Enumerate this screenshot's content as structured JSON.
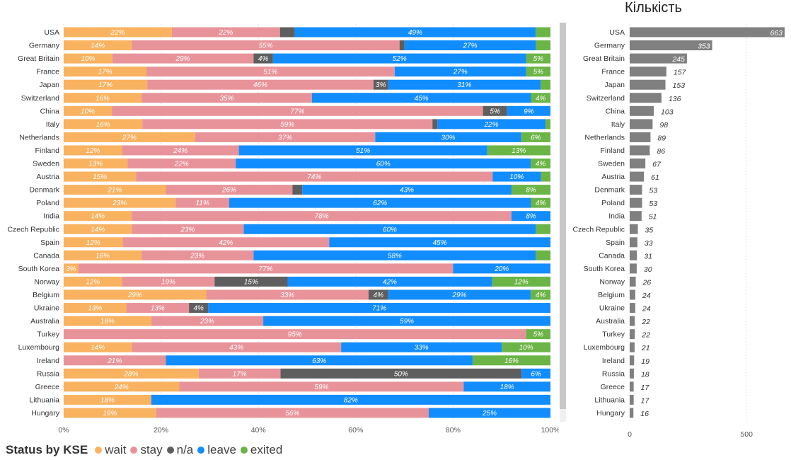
{
  "chart_data": [
    {
      "type": "bar",
      "orientation": "horizontal",
      "stacked": "percent",
      "categories": [
        "USA",
        "Germany",
        "Great Britain",
        "France",
        "Japan",
        "Switzerland",
        "China",
        "Italy",
        "Netherlands",
        "Finland",
        "Sweden",
        "Austria",
        "Denmark",
        "Poland",
        "India",
        "Czech Republic",
        "Spain",
        "Canada",
        "South Korea",
        "Norway",
        "Belgium",
        "Ukraine",
        "Australia",
        "Turkey",
        "Luxembourg",
        "Ireland",
        "Russia",
        "Greece",
        "Lithuania",
        "Hungary"
      ],
      "series": [
        {
          "name": "wait",
          "color": "#F9B25F",
          "values": [
            22,
            14,
            10,
            17,
            17,
            16,
            10,
            16,
            27,
            12,
            13,
            15,
            21,
            23,
            14,
            14,
            12,
            16,
            3,
            12,
            29,
            13,
            18,
            0,
            14,
            0,
            28,
            24,
            18,
            19
          ]
        },
        {
          "name": "stay",
          "color": "#E8939A",
          "values": [
            22,
            55,
            29,
            51,
            46,
            35,
            77,
            59,
            37,
            24,
            22,
            74,
            26,
            11,
            78,
            23,
            42,
            23,
            77,
            19,
            33,
            13,
            23,
            95,
            43,
            21,
            17,
            59,
            0,
            56
          ]
        },
        {
          "name": "n/a",
          "color": "#5E5E5E",
          "values": [
            3,
            1,
            4,
            0,
            3,
            0,
            5,
            1,
            0,
            0,
            0,
            0,
            2,
            0,
            0,
            0,
            0,
            0,
            0,
            15,
            4,
            4,
            0,
            0,
            0,
            0,
            50,
            0,
            0,
            0
          ]
        },
        {
          "name": "leave",
          "color": "#118DFF",
          "values": [
            49,
            27,
            52,
            27,
            31,
            45,
            9,
            22,
            30,
            51,
            60,
            10,
            43,
            62,
            8,
            60,
            45,
            58,
            20,
            42,
            29,
            71,
            59,
            0,
            33,
            63,
            6,
            18,
            82,
            25
          ]
        },
        {
          "name": "exited",
          "color": "#6BB446",
          "values": [
            3,
            3,
            5,
            5,
            2,
            4,
            0,
            1,
            6,
            13,
            4,
            2,
            8,
            4,
            0,
            3,
            0,
            3,
            0,
            12,
            4,
            0,
            0,
            5,
            10,
            16,
            0,
            0,
            0,
            0
          ]
        }
      ],
      "shown_labels": {
        "wait": [
          "22%",
          "14%",
          "10%",
          "17%",
          "17%",
          "16%",
          "10%",
          "16%",
          "27%",
          "12%",
          "13%",
          "15%",
          "21%",
          "23%",
          "14%",
          "14%",
          "12%",
          "16%",
          "3%",
          "12%",
          "29%",
          "13%",
          "18%",
          "",
          "14%",
          "",
          "28%",
          "24%",
          "18%",
          "19%"
        ],
        "stay": [
          "22%",
          "55%",
          "29%",
          "51%",
          "46%",
          "35%",
          "77%",
          "59%",
          "37%",
          "24%",
          "22%",
          "74%",
          "26%",
          "11%",
          "78%",
          "23%",
          "42%",
          "23%",
          "77%",
          "19%",
          "33%",
          "13%",
          "23%",
          "95%",
          "43%",
          "21%",
          "17%",
          "59%",
          "",
          "56%"
        ],
        "n/a": [
          "",
          "",
          "4%",
          "",
          "3%",
          "",
          "5%",
          "",
          "",
          "",
          "",
          "",
          "",
          "",
          "",
          "",
          "",
          "",
          "",
          "15%",
          "4%",
          "4%",
          "",
          "",
          "",
          "",
          "50%",
          "",
          "",
          ""
        ],
        "leave": [
          "49%",
          "27%",
          "52%",
          "27%",
          "31%",
          "45%",
          "9%",
          "22%",
          "30%",
          "51%",
          "60%",
          "10%",
          "43%",
          "62%",
          "8%",
          "60%",
          "45%",
          "58%",
          "20%",
          "42%",
          "29%",
          "71%",
          "59%",
          "",
          "33%",
          "63%",
          "6%",
          "18%",
          "82%",
          "25%"
        ],
        "exited": [
          "",
          "",
          "5%",
          "5%",
          "",
          "4%",
          "",
          "",
          "6%",
          "13%",
          "4%",
          "",
          "8%",
          "4%",
          "",
          "",
          "",
          "",
          "",
          "12%",
          "4%",
          "",
          "",
          "5%",
          "10%",
          "16%",
          "",
          "",
          "",
          ""
        ]
      },
      "xlim": [
        0,
        100
      ],
      "x_ticks": [
        "0%",
        "20%",
        "40%",
        "60%",
        "80%",
        "100%"
      ],
      "legend": {
        "title": "Status by KSE",
        "position": "bottom-left",
        "items": [
          "wait",
          "stay",
          "n/a",
          "leave",
          "exited"
        ]
      }
    },
    {
      "type": "bar",
      "orientation": "horizontal",
      "title": "Кількість",
      "categories": [
        "USA",
        "Germany",
        "Great Britain",
        "France",
        "Japan",
        "Switzerland",
        "China",
        "Italy",
        "Netherlands",
        "Finland",
        "Sweden",
        "Austria",
        "Denmark",
        "Poland",
        "India",
        "Czech Republic",
        "Spain",
        "Canada",
        "South Korea",
        "Norway",
        "Belgium",
        "Ukraine",
        "Australia",
        "Turkey",
        "Luxembourg",
        "Ireland",
        "Russia",
        "Greece",
        "Lithuania",
        "Hungary"
      ],
      "values": [
        663,
        353,
        245,
        157,
        153,
        136,
        103,
        98,
        89,
        86,
        67,
        61,
        53,
        53,
        51,
        35,
        33,
        31,
        30,
        26,
        24,
        24,
        22,
        22,
        21,
        19,
        18,
        17,
        17,
        16
      ],
      "color": "#808080",
      "xlim": [
        0,
        663
      ],
      "x_ticks": [
        "0",
        "500"
      ],
      "gridline_values": [
        0,
        500
      ]
    }
  ]
}
